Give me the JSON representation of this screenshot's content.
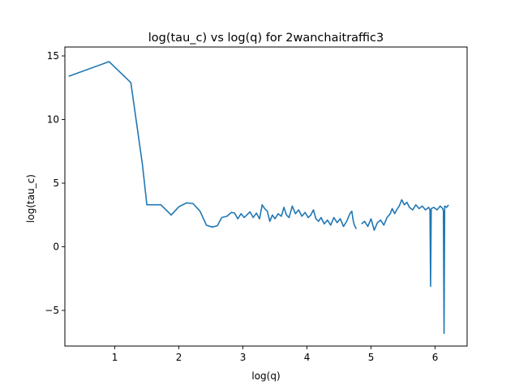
{
  "chart_data": {
    "type": "line",
    "title": "log(tau_c) vs log(q) for 2wanchaitraffic3",
    "xlabel": "log(q)",
    "ylabel": "log(tau_c)",
    "xlim": [
      0.22,
      6.5
    ],
    "ylim": [
      -7.8,
      15.7
    ],
    "xticks": [
      1,
      2,
      3,
      4,
      5,
      6
    ],
    "yticks": [
      15,
      10,
      5,
      0,
      -5
    ],
    "ytick_labels": [
      "15",
      "10",
      "5",
      "0",
      "−5"
    ],
    "grid": false,
    "line_color": "#1f77b4",
    "series": [
      {
        "segments": [
          [
            [
              0.28,
              13.4
            ],
            [
              0.91,
              14.55
            ],
            [
              1.25,
              12.9
            ],
            [
              1.43,
              6.5
            ],
            [
              1.5,
              3.3
            ],
            [
              1.72,
              3.3
            ],
            [
              1.88,
              2.5
            ],
            [
              2.0,
              3.15
            ],
            [
              2.12,
              3.45
            ],
            [
              2.22,
              3.4
            ],
            [
              2.33,
              2.8
            ],
            [
              2.43,
              1.7
            ],
            [
              2.52,
              1.55
            ],
            [
              2.6,
              1.65
            ],
            [
              2.67,
              2.3
            ],
            [
              2.75,
              2.4
            ],
            [
              2.82,
              2.7
            ],
            [
              2.87,
              2.65
            ],
            [
              2.92,
              2.2
            ],
            [
              2.97,
              2.6
            ],
            [
              3.02,
              2.3
            ],
            [
              3.06,
              2.5
            ],
            [
              3.11,
              2.75
            ],
            [
              3.16,
              2.3
            ],
            [
              3.21,
              2.65
            ],
            [
              3.26,
              2.2
            ],
            [
              3.3,
              3.3
            ],
            [
              3.34,
              3.0
            ],
            [
              3.38,
              2.8
            ],
            [
              3.42,
              2.0
            ],
            [
              3.46,
              2.5
            ],
            [
              3.5,
              2.2
            ],
            [
              3.55,
              2.6
            ],
            [
              3.6,
              2.4
            ],
            [
              3.64,
              3.1
            ],
            [
              3.68,
              2.5
            ],
            [
              3.72,
              2.3
            ],
            [
              3.77,
              3.2
            ],
            [
              3.82,
              2.6
            ],
            [
              3.87,
              2.9
            ],
            [
              3.92,
              2.4
            ],
            [
              3.97,
              2.7
            ],
            [
              4.02,
              2.3
            ],
            [
              4.06,
              2.5
            ],
            [
              4.1,
              2.9
            ],
            [
              4.14,
              2.2
            ],
            [
              4.18,
              2.0
            ],
            [
              4.22,
              2.3
            ],
            [
              4.27,
              1.8
            ],
            [
              4.32,
              2.1
            ],
            [
              4.37,
              1.7
            ],
            [
              4.42,
              2.3
            ],
            [
              4.47,
              1.9
            ],
            [
              4.52,
              2.2
            ],
            [
              4.57,
              1.6
            ],
            [
              4.62,
              2.0
            ],
            [
              4.67,
              2.6
            ],
            [
              4.7,
              2.8
            ],
            [
              4.72,
              2.1
            ],
            [
              4.74,
              1.7
            ],
            [
              4.77,
              1.4
            ]
          ],
          [
            [
              4.85,
              1.8
            ],
            [
              4.9,
              2.0
            ],
            [
              4.95,
              1.6
            ],
            [
              5.0,
              2.2
            ],
            [
              5.05,
              1.3
            ],
            [
              5.1,
              1.9
            ],
            [
              5.15,
              2.1
            ],
            [
              5.2,
              1.7
            ],
            [
              5.25,
              2.3
            ],
            [
              5.3,
              2.6
            ],
            [
              5.33,
              3.0
            ],
            [
              5.37,
              2.6
            ],
            [
              5.4,
              2.9
            ],
            [
              5.44,
              3.2
            ],
            [
              5.48,
              3.7
            ],
            [
              5.52,
              3.3
            ],
            [
              5.56,
              3.5
            ],
            [
              5.6,
              3.1
            ],
            [
              5.65,
              2.9
            ],
            [
              5.7,
              3.3
            ],
            [
              5.75,
              3.0
            ],
            [
              5.8,
              3.2
            ],
            [
              5.85,
              2.9
            ],
            [
              5.9,
              3.1
            ],
            [
              5.92,
              2.9
            ],
            [
              5.93,
              -3.1
            ],
            [
              5.94,
              3.0
            ],
            [
              5.98,
              3.1
            ],
            [
              6.03,
              2.9
            ],
            [
              6.08,
              3.2
            ],
            [
              6.12,
              3.0
            ],
            [
              6.13,
              2.8
            ],
            [
              6.14,
              -6.8
            ],
            [
              6.15,
              3.2
            ],
            [
              6.18,
              3.1
            ],
            [
              6.21,
              3.3
            ]
          ]
        ]
      }
    ]
  }
}
